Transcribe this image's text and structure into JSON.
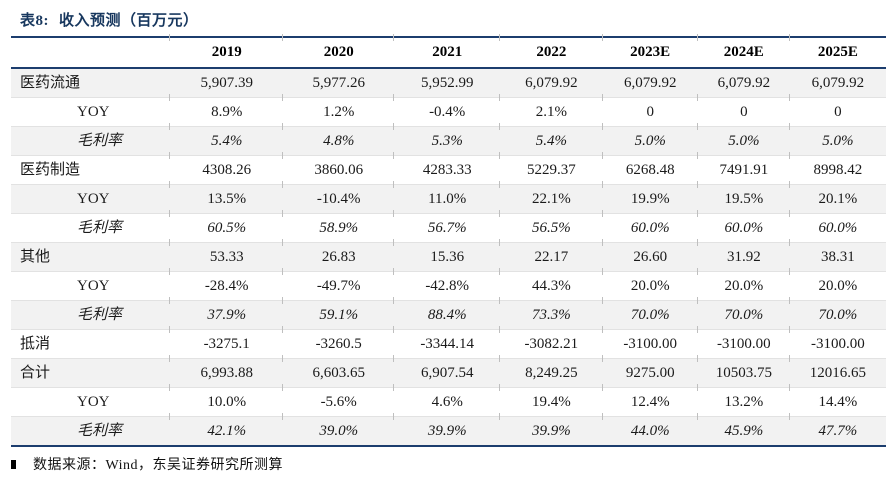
{
  "title": {
    "prefix": "表8:",
    "main": "收入预测（百万元）"
  },
  "table": {
    "columns": [
      "",
      "2019",
      "2020",
      "2021",
      "2022",
      "2023E",
      "2024E",
      "2025E"
    ],
    "rows": [
      {
        "label": "医药流通",
        "indent": false,
        "italic": false,
        "values": [
          "5,907.39",
          "5,977.26",
          "5,952.99",
          "6,079.92",
          "6,079.92",
          "6,079.92",
          "6,079.92"
        ]
      },
      {
        "label": "YOY",
        "indent": true,
        "italic": false,
        "values": [
          "8.9%",
          "1.2%",
          "-0.4%",
          "2.1%",
          "0",
          "0",
          "0"
        ]
      },
      {
        "label": "毛利率",
        "indent": true,
        "italic": true,
        "values": [
          "5.4%",
          "4.8%",
          "5.3%",
          "5.4%",
          "5.0%",
          "5.0%",
          "5.0%"
        ]
      },
      {
        "label": "医药制造",
        "indent": false,
        "italic": false,
        "values": [
          "4308.26",
          "3860.06",
          "4283.33",
          "5229.37",
          "6268.48",
          "7491.91",
          "8998.42"
        ]
      },
      {
        "label": "YOY",
        "indent": true,
        "italic": false,
        "values": [
          "13.5%",
          "-10.4%",
          "11.0%",
          "22.1%",
          "19.9%",
          "19.5%",
          "20.1%"
        ]
      },
      {
        "label": "毛利率",
        "indent": true,
        "italic": true,
        "values": [
          "60.5%",
          "58.9%",
          "56.7%",
          "56.5%",
          "60.0%",
          "60.0%",
          "60.0%"
        ]
      },
      {
        "label": "其他",
        "indent": false,
        "italic": false,
        "values": [
          "53.33",
          "26.83",
          "15.36",
          "22.17",
          "26.60",
          "31.92",
          "38.31"
        ]
      },
      {
        "label": "YOY",
        "indent": true,
        "italic": false,
        "values": [
          "-28.4%",
          "-49.7%",
          "-42.8%",
          "44.3%",
          "20.0%",
          "20.0%",
          "20.0%"
        ]
      },
      {
        "label": "毛利率",
        "indent": true,
        "italic": true,
        "values": [
          "37.9%",
          "59.1%",
          "88.4%",
          "73.3%",
          "70.0%",
          "70.0%",
          "70.0%"
        ]
      },
      {
        "label": "抵消",
        "indent": false,
        "italic": false,
        "values": [
          "-3275.1",
          "-3260.5",
          "-3344.14",
          "-3082.21",
          "-3100.00",
          "-3100.00",
          "-3100.00"
        ]
      },
      {
        "label": "合计",
        "indent": false,
        "italic": false,
        "values": [
          "6,993.88",
          "6,603.65",
          "6,907.54",
          "8,249.25",
          "9275.00",
          "10503.75",
          "12016.65"
        ]
      },
      {
        "label": "YOY",
        "indent": true,
        "italic": false,
        "values": [
          "10.0%",
          "-5.6%",
          "4.6%",
          "19.4%",
          "12.4%",
          "13.2%",
          "14.4%"
        ]
      },
      {
        "label": "毛利率",
        "indent": true,
        "italic": true,
        "values": [
          "42.1%",
          "39.0%",
          "39.9%",
          "39.9%",
          "44.0%",
          "45.9%",
          "47.7%"
        ]
      }
    ]
  },
  "footer": {
    "source": "数据来源：Wind，东吴证券研究所测算"
  },
  "colors": {
    "accent_navy": "#17375E",
    "rule_navy": "#1c3d6e",
    "stripe_gray": "#F2F2F2",
    "separator_gray": "#E2E2E2"
  }
}
